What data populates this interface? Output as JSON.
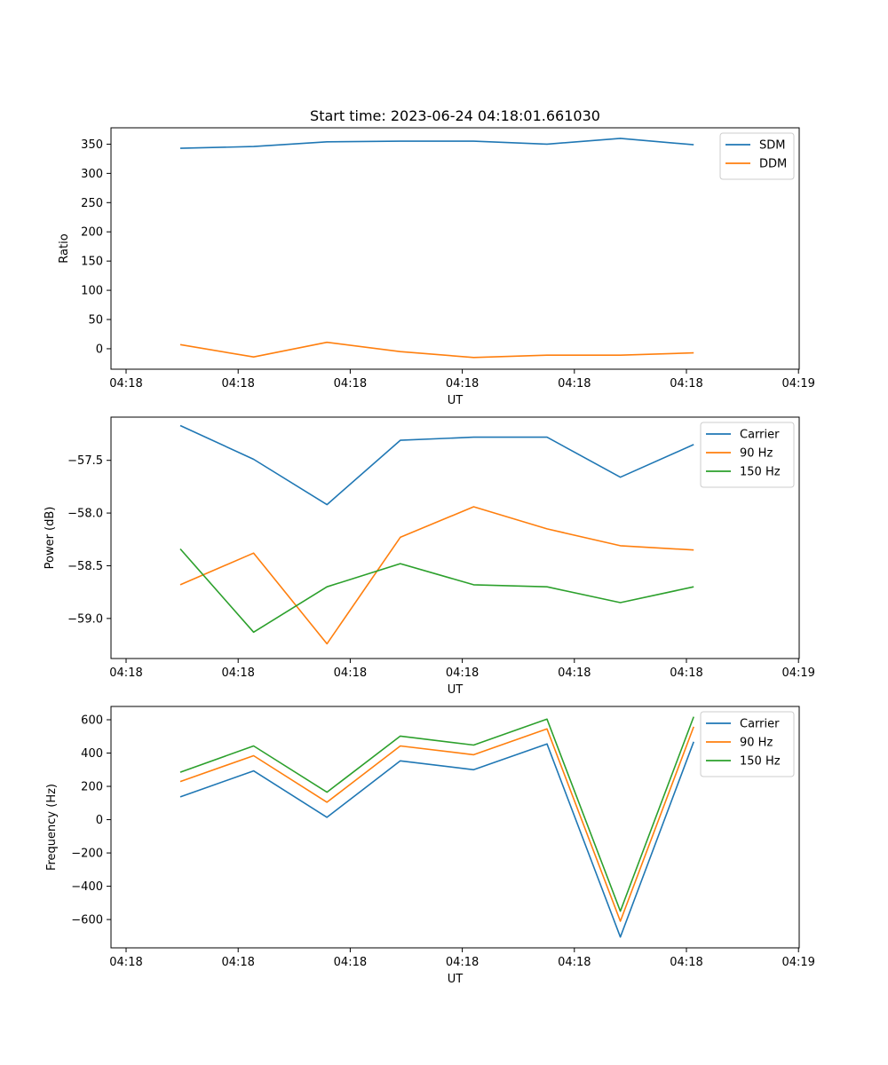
{
  "chart_data": [
    {
      "type": "line",
      "title": "Start time: 2023-06-24 04:18:01.661030",
      "xlabel": "UT",
      "ylabel": "Ratio",
      "x_tick_labels": [
        "04:18",
        "04:18",
        "04:18",
        "04:18",
        "04:18",
        "04:18",
        "04:19"
      ],
      "yticks": [
        0,
        50,
        100,
        150,
        200,
        250,
        300,
        350
      ],
      "ylim": [
        -35,
        378
      ],
      "legend_position": "top-right",
      "x_points": 8,
      "series": [
        {
          "name": "SDM",
          "color": "#1f77b4",
          "values": [
            343,
            346,
            354,
            355,
            355,
            350,
            360,
            349
          ]
        },
        {
          "name": "DDM",
          "color": "#ff7f0e",
          "values": [
            7,
            -14,
            11,
            -5,
            -15,
            -11,
            -11,
            -7
          ]
        }
      ]
    },
    {
      "type": "line",
      "title": "",
      "xlabel": "UT",
      "ylabel": "Power (dB)",
      "x_tick_labels": [
        "04:18",
        "04:18",
        "04:18",
        "04:18",
        "04:18",
        "04:18",
        "04:19"
      ],
      "yticks": [
        -59.0,
        -58.5,
        -58.0,
        -57.5
      ],
      "ytick_labels": [
        "−59.0",
        "−58.5",
        "−58.0",
        "−57.5"
      ],
      "ylim": [
        -59.38,
        -57.09
      ],
      "legend_position": "top-right",
      "x_points": 8,
      "series": [
        {
          "name": "Carrier",
          "color": "#1f77b4",
          "values": [
            -57.17,
            -57.49,
            -57.92,
            -57.31,
            -57.28,
            -57.28,
            -57.66,
            -57.35
          ]
        },
        {
          "name": "90 Hz",
          "color": "#ff7f0e",
          "values": [
            -58.68,
            -58.38,
            -59.24,
            -58.23,
            -57.94,
            -58.15,
            -58.31,
            -58.35
          ]
        },
        {
          "name": "150 Hz",
          "color": "#2ca02c",
          "values": [
            -58.34,
            -59.13,
            -58.7,
            -58.48,
            -58.68,
            -58.7,
            -58.85,
            -58.7
          ]
        }
      ]
    },
    {
      "type": "line",
      "title": "",
      "xlabel": "UT",
      "ylabel": "Frequency (Hz)",
      "x_tick_labels": [
        "04:18",
        "04:18",
        "04:18",
        "04:18",
        "04:18",
        "04:18",
        "04:19"
      ],
      "yticks": [
        -600,
        -400,
        -200,
        0,
        200,
        400,
        600
      ],
      "ytick_labels": [
        "−600",
        "−400",
        "−200",
        "0",
        "200",
        "400",
        "600"
      ],
      "ylim": [
        -770,
        680
      ],
      "legend_position": "top-right",
      "x_points": 8,
      "series": [
        {
          "name": "Carrier",
          "color": "#1f77b4",
          "values": [
            137,
            293,
            14,
            353,
            300,
            455,
            -705,
            468
          ]
        },
        {
          "name": "90 Hz",
          "color": "#ff7f0e",
          "values": [
            229,
            384,
            105,
            443,
            390,
            545,
            -610,
            558
          ]
        },
        {
          "name": "150 Hz",
          "color": "#2ca02c",
          "values": [
            285,
            443,
            165,
            502,
            448,
            604,
            -550,
            618
          ]
        }
      ]
    }
  ]
}
